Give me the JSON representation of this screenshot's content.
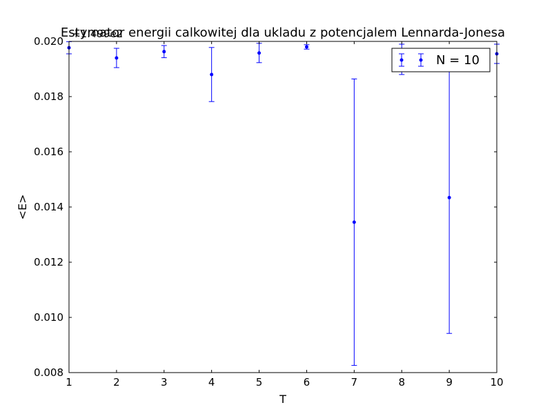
{
  "chart_data": {
    "type": "scatter",
    "title": "Estymator energii calkowitej dla ukladu z potencjalem Lennarda-Jonesa",
    "xlabel": "T",
    "ylabel": "<E>",
    "y_offset_text": "+1.499e2",
    "xlim": [
      1,
      10
    ],
    "ylim": [
      0.008,
      0.02
    ],
    "x_ticks": [
      "1",
      "2",
      "3",
      "4",
      "5",
      "6",
      "7",
      "8",
      "9",
      "10"
    ],
    "y_ticks": [
      "0.008",
      "0.010",
      "0.012",
      "0.014",
      "0.016",
      "0.018",
      "0.020"
    ],
    "legend_position": "top-right",
    "grid": false,
    "colors": {
      "series": "#0000ff"
    },
    "series": [
      {
        "name": "N = 10",
        "x": [
          1,
          2,
          3,
          4,
          5,
          6,
          7,
          8,
          9,
          10
        ],
        "y": [
          0.01977,
          0.0194,
          0.01963,
          0.0188,
          0.01958,
          0.0198,
          0.01345,
          0.01935,
          0.01434,
          0.01955
        ],
        "err": [
          0.00022,
          0.00035,
          0.00022,
          0.00098,
          0.00035,
          8e-05,
          0.00519,
          0.00055,
          0.00492,
          0.00035
        ]
      }
    ]
  }
}
